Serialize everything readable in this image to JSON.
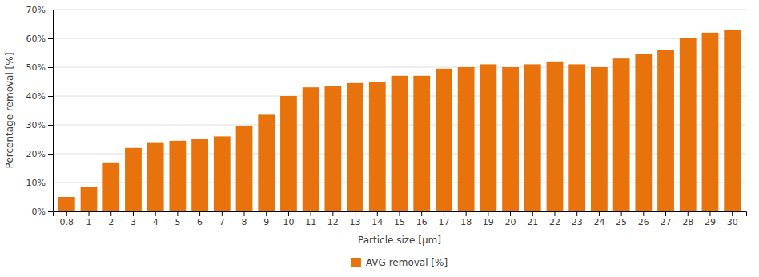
{
  "chart_data": {
    "type": "bar",
    "xlabel": "Particle size [μm]",
    "ylabel": "Percentage removal [%]",
    "categories": [
      "0.8",
      "1",
      "2",
      "3",
      "4",
      "5",
      "6",
      "7",
      "8",
      "9",
      "10",
      "11",
      "12",
      "13",
      "14",
      "15",
      "16",
      "17",
      "18",
      "19",
      "20",
      "21",
      "22",
      "23",
      "24",
      "25",
      "26",
      "27",
      "28",
      "29",
      "30"
    ],
    "series": [
      {
        "name": "AVG removal [%]",
        "color": "#E8720C",
        "values": [
          5,
          8.5,
          17,
          22,
          24,
          24.5,
          25,
          26,
          29.5,
          33.5,
          40,
          43,
          43.5,
          44.5,
          45,
          47,
          47,
          49.5,
          50,
          51,
          50,
          51,
          52,
          51,
          50,
          53,
          54.5,
          56,
          60,
          62,
          63
        ]
      }
    ],
    "ylim": [
      0,
      70
    ],
    "yticks": [
      {
        "value": 0,
        "label": "0%"
      },
      {
        "value": 10,
        "label": "10%"
      },
      {
        "value": 20,
        "label": "20%"
      },
      {
        "value": 30,
        "label": "30%"
      },
      {
        "value": 40,
        "label": "40%"
      },
      {
        "value": 50,
        "label": "50%"
      },
      {
        "value": 60,
        "label": "60%"
      },
      {
        "value": 70,
        "label": "70%"
      }
    ],
    "grid": true,
    "legend": "bottom"
  }
}
